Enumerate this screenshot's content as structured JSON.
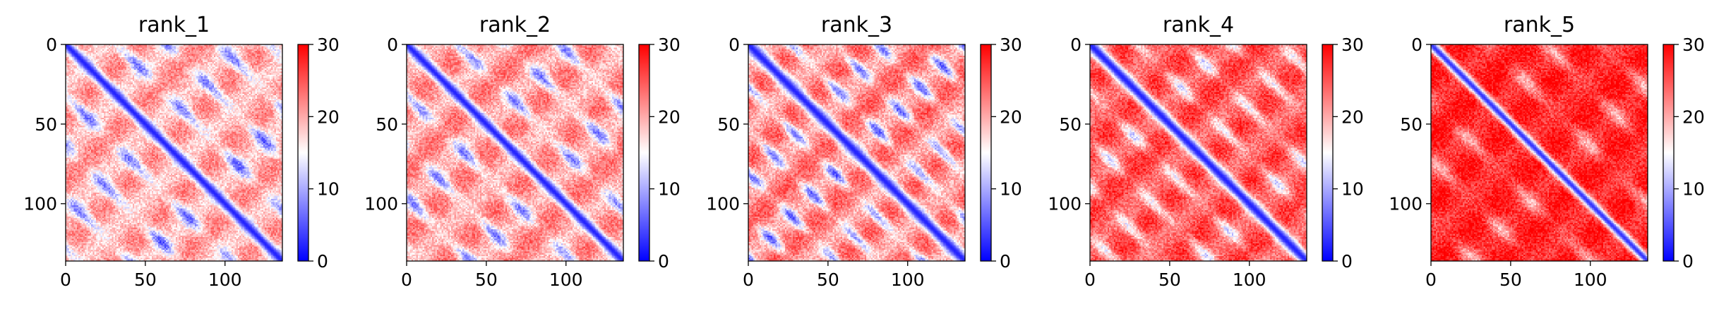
{
  "figure": {
    "background": "#ffffff"
  },
  "chart_data": [
    {
      "type": "heatmap",
      "title": "rank_1",
      "matrix_size": 136,
      "xlim": [
        0,
        136
      ],
      "ylim": [
        136,
        0
      ],
      "xticks": [
        0,
        50,
        100
      ],
      "yticks": [
        0,
        50,
        100
      ],
      "colorbar": {
        "colormap": "bwr",
        "vmin": 0,
        "vmax": 30,
        "ticks": [
          0,
          10,
          20,
          30
        ]
      },
      "pattern": {
        "diagonal_value": 2,
        "diagonal_width": 3.5,
        "band_period": 32,
        "base_mean": 20,
        "stripe_amplitude": 8
      }
    },
    {
      "type": "heatmap",
      "title": "rank_2",
      "matrix_size": 136,
      "xlim": [
        0,
        136
      ],
      "ylim": [
        136,
        0
      ],
      "xticks": [
        0,
        50,
        100
      ],
      "yticks": [
        0,
        50,
        100
      ],
      "colorbar": {
        "colormap": "bwr",
        "vmin": 0,
        "vmax": 30,
        "ticks": [
          0,
          10,
          20,
          30
        ]
      },
      "pattern": {
        "diagonal_value": 2,
        "diagonal_width": 3.5,
        "band_period": 32,
        "base_mean": 21,
        "stripe_amplitude": 8
      }
    },
    {
      "type": "heatmap",
      "title": "rank_3",
      "matrix_size": 136,
      "xlim": [
        0,
        136
      ],
      "ylim": [
        136,
        0
      ],
      "xticks": [
        0,
        50,
        100
      ],
      "yticks": [
        0,
        50,
        100
      ],
      "colorbar": {
        "colormap": "bwr",
        "vmin": 0,
        "vmax": 30,
        "ticks": [
          0,
          10,
          20,
          30
        ]
      },
      "pattern": {
        "diagonal_value": 2,
        "diagonal_width": 4,
        "band_period": 27,
        "base_mean": 22,
        "stripe_amplitude": 9
      }
    },
    {
      "type": "heatmap",
      "title": "rank_4",
      "matrix_size": 136,
      "xlim": [
        0,
        136
      ],
      "ylim": [
        136,
        0
      ],
      "xticks": [
        0,
        50,
        100
      ],
      "yticks": [
        0,
        50,
        100
      ],
      "colorbar": {
        "colormap": "bwr",
        "vmin": 0,
        "vmax": 30,
        "ticks": [
          0,
          10,
          20,
          30
        ]
      },
      "pattern": {
        "diagonal_value": 2,
        "diagonal_width": 4,
        "band_period": 30,
        "base_mean": 25,
        "stripe_amplitude": 7
      }
    },
    {
      "type": "heatmap",
      "title": "rank_5",
      "matrix_size": 136,
      "xlim": [
        0,
        136
      ],
      "ylim": [
        136,
        0
      ],
      "xticks": [
        0,
        50,
        100
      ],
      "yticks": [
        0,
        50,
        100
      ],
      "colorbar": {
        "colormap": "bwr",
        "vmin": 0,
        "vmax": 30,
        "ticks": [
          0,
          10,
          20,
          30
        ]
      },
      "pattern": {
        "diagonal_value": 3,
        "diagonal_width": 3,
        "band_period": 36,
        "base_mean": 28,
        "stripe_amplitude": 5
      }
    }
  ]
}
